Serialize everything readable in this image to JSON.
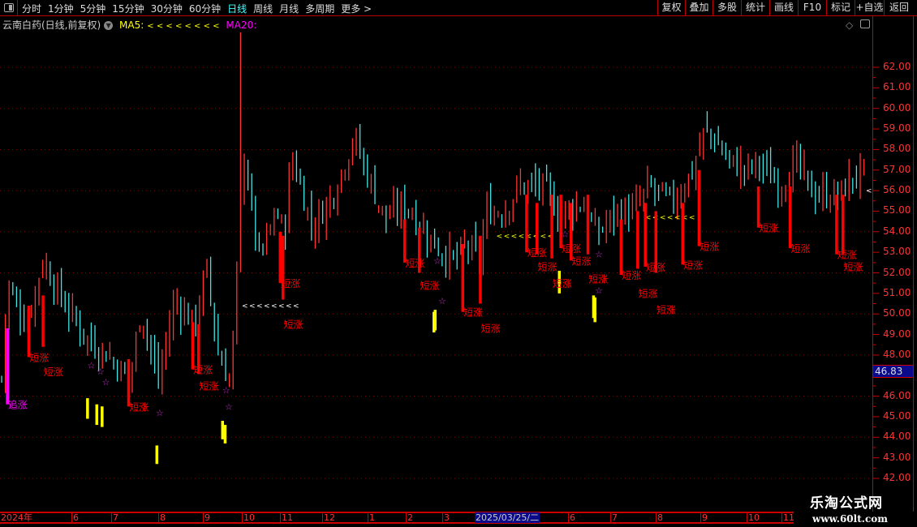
{
  "toolbar": {
    "periods": [
      "分时",
      "1分钟",
      "5分钟",
      "15分钟",
      "30分钟",
      "60分钟",
      "日线",
      "周线",
      "月线",
      "多周期",
      "更多 >"
    ],
    "active_period": "日线",
    "right_buttons": [
      "复权",
      "叠加",
      "多股",
      "统计",
      "画线",
      "F10",
      "标记",
      "+自选",
      "返回"
    ]
  },
  "title": {
    "stock": "云南白药(日线,前复权)",
    "ma5_label": "MA5:",
    "ma5_value": "< < < < < < < <",
    "ma20_label": "MA20:"
  },
  "colors": {
    "up": "#ff3333",
    "down": "#44e5e5",
    "signal": "#ff0000",
    "chase": "#ff00ff",
    "star": "#cc33cc",
    "yellow": "#ffff00",
    "grid": "#8b0000",
    "axis": "#ff3333",
    "cursor_bg": "#0a0a8a"
  },
  "current_price": "46.83",
  "cursor_date": "2025/03/25/二",
  "watermark": {
    "name": "乐淘公式网",
    "url": "www.60lt.com"
  },
  "chart_data": {
    "type": "candlestick",
    "ylim": [
      42,
      62
    ],
    "y_ticks": [
      "62.00",
      "61.00",
      "60.00",
      "59.00",
      "58.00",
      "57.00",
      "56.00",
      "55.00",
      "54.00",
      "53.00",
      "52.00",
      "51.00",
      "50.00",
      "49.00",
      "48.00",
      "47.00",
      "46.00",
      "45.00",
      "44.00",
      "43.00",
      "42.00"
    ],
    "x_ticks": [
      "2024年",
      "6",
      "7",
      "8",
      "9",
      "10",
      "11",
      "12",
      "1",
      "2",
      "3",
      "6",
      "7",
      "8",
      "9",
      "10",
      "11"
    ],
    "grid": "dotted every 2.00",
    "close_path": [
      [
        "2024-05-01",
        45.5
      ],
      [
        "2024-05-04",
        51.5
      ],
      [
        "2024-05-12",
        49.5
      ],
      [
        "2024-05-19",
        52.6
      ],
      [
        "2024-05-27",
        50.7
      ],
      [
        "2024-06-14",
        48.7
      ],
      [
        "2024-06-29",
        48.0
      ],
      [
        "2024-07-13",
        46.7
      ],
      [
        "2024-07-20",
        50.3
      ],
      [
        "2024-08-01",
        46.7
      ],
      [
        "2024-08-12",
        50.7
      ],
      [
        "2024-08-25",
        49.5
      ],
      [
        "2024-09-04",
        52.2
      ],
      [
        "2024-09-13",
        48.0
      ],
      [
        "2024-09-22",
        46.7
      ],
      [
        "2024-09-26",
        50.3
      ],
      [
        "2024-10-02",
        58.2
      ],
      [
        "2024-10-08",
        55.4
      ],
      [
        "2024-10-15",
        52.6
      ],
      [
        "2024-10-28",
        55.0
      ],
      [
        "2024-11-04",
        53.8
      ],
      [
        "2024-11-09",
        57.8
      ],
      [
        "2024-11-24",
        54.2
      ],
      [
        "2024-12-08",
        55.8
      ],
      [
        "2024-12-22",
        58.6
      ],
      [
        "2025-01-02",
        56.6
      ],
      [
        "2025-01-15",
        54.6
      ],
      [
        "2025-02-01",
        55.4
      ],
      [
        "2025-02-14",
        54.2
      ],
      [
        "2025-03-01",
        53.0
      ],
      [
        "2025-03-10",
        52.6
      ],
      [
        "2025-03-19",
        53.4
      ],
      [
        "2025-03-28",
        52.6
      ],
      [
        "2025-04-04",
        55.0
      ],
      [
        "2025-04-16",
        55.0
      ],
      [
        "2025-04-28",
        56.2
      ],
      [
        "2025-05-14",
        56.2
      ],
      [
        "2025-05-25",
        55.0
      ],
      [
        "2025-06-12",
        55.4
      ],
      [
        "2025-06-21",
        53.8
      ],
      [
        "2025-07-05",
        55.0
      ],
      [
        "2025-07-16",
        55.0
      ],
      [
        "2025-07-27",
        56.2
      ],
      [
        "2025-08-12",
        55.4
      ],
      [
        "2025-08-26",
        57.0
      ],
      [
        "2025-09-04",
        59.0
      ],
      [
        "2025-09-09",
        58.6
      ],
      [
        "2025-09-20",
        57.4
      ],
      [
        "2025-10-01",
        57.0
      ],
      [
        "2025-10-11",
        57.4
      ],
      [
        "2025-10-29",
        56.2
      ],
      [
        "2025-11-11",
        57.4
      ],
      [
        "2025-11-24",
        55.8
      ],
      [
        "2025-12-13",
        55.8
      ],
      [
        "2025-12-26",
        56.8
      ],
      [
        "2026-01-05",
        57.0
      ]
    ],
    "spike": {
      "date": "2024-10-01",
      "high": 63.7
    },
    "short_rise_label": "短涨",
    "short_rise_signals": [
      [
        "2024-05-13",
        50.4,
        47.9
      ],
      [
        "2024-05-19",
        50.9,
        48.4
      ],
      [
        "2024-07-12",
        47.8,
        45.5
      ],
      [
        "2024-08-24",
        49.6,
        47.3
      ],
      [
        "2024-08-28",
        49.5,
        47.1
      ],
      [
        "2024-11-01",
        54.0,
        51.5
      ],
      [
        "2024-11-03",
        53.8,
        50.7
      ],
      [
        "2025-01-30",
        54.6,
        52.5
      ],
      [
        "2025-02-12",
        54.2,
        52.0
      ],
      [
        "2025-03-16",
        53.4,
        50.1
      ],
      [
        "2025-03-29",
        53.8,
        50.5
      ],
      [
        "2025-05-03",
        55.8,
        53.0
      ],
      [
        "2025-05-10",
        55.4,
        52.9
      ],
      [
        "2025-05-20",
        55.8,
        52.7
      ],
      [
        "2025-05-26",
        55.8,
        53.2
      ],
      [
        "2025-06-03",
        55.4,
        52.6
      ],
      [
        "2025-06-15",
        55.8,
        52.9
      ],
      [
        "2025-07-08",
        54.6,
        51.9
      ],
      [
        "2025-07-19",
        55.0,
        52.2
      ],
      [
        "2025-07-24",
        55.4,
        52.3
      ],
      [
        "2025-08-01",
        55.0,
        52.0
      ],
      [
        "2025-08-19",
        55.4,
        52.4
      ],
      [
        "2025-08-30",
        57.0,
        53.3
      ],
      [
        "2025-10-11",
        56.2,
        54.2
      ],
      [
        "2025-11-07",
        56.2,
        53.2
      ],
      [
        "2025-12-11",
        55.8,
        52.9
      ],
      [
        "2025-12-16",
        55.8,
        52.9
      ]
    ],
    "chase_label": "追涨",
    "chase_signal": [
      "2024-05-04",
      49.3,
      45.6
    ],
    "stars": [
      [
        "2024-06-16",
        47.5
      ],
      [
        "2024-06-23",
        47.2
      ],
      [
        "2024-06-27",
        47.2
      ],
      [
        "2024-08-02",
        45.2
      ],
      [
        "2024-09-19",
        46.3
      ],
      [
        "2024-09-21",
        46.0
      ],
      [
        "2025-02-27",
        52.6
      ],
      [
        "2025-03-01",
        52.7
      ],
      [
        "2025-05-29",
        53.9
      ],
      [
        "2025-06-23",
        52.9
      ],
      [
        "2025-06-23",
        52.7
      ]
    ],
    "yellow_bars": [
      [
        "2024-06-13",
        45.9,
        44.9
      ],
      [
        "2024-06-20",
        45.6,
        44.6
      ],
      [
        "2024-06-24",
        45.5,
        44.5
      ],
      [
        "2024-07-30",
        43.6,
        42.7
      ],
      [
        "2024-09-16",
        44.8,
        43.9
      ],
      [
        "2024-09-18",
        44.6,
        43.7
      ],
      [
        "2025-02-24",
        50.1,
        49.1
      ],
      [
        "2025-02-25",
        50.2,
        49.2
      ],
      [
        "2025-05-25",
        52.1,
        51.0
      ],
      [
        "2025-06-19",
        50.9,
        49.8
      ],
      [
        "2025-06-20",
        50.8,
        49.6
      ]
    ],
    "arrow_rows": [
      [
        "2024-10-01",
        "2024-11-12",
        50.4,
        "#ffffff"
      ],
      [
        "2025-04-11",
        "2025-05-20",
        53.8,
        "#ffff00"
      ],
      [
        "2025-07-24",
        "2025-08-28",
        54.7,
        "#ffff00"
      ]
    ]
  }
}
